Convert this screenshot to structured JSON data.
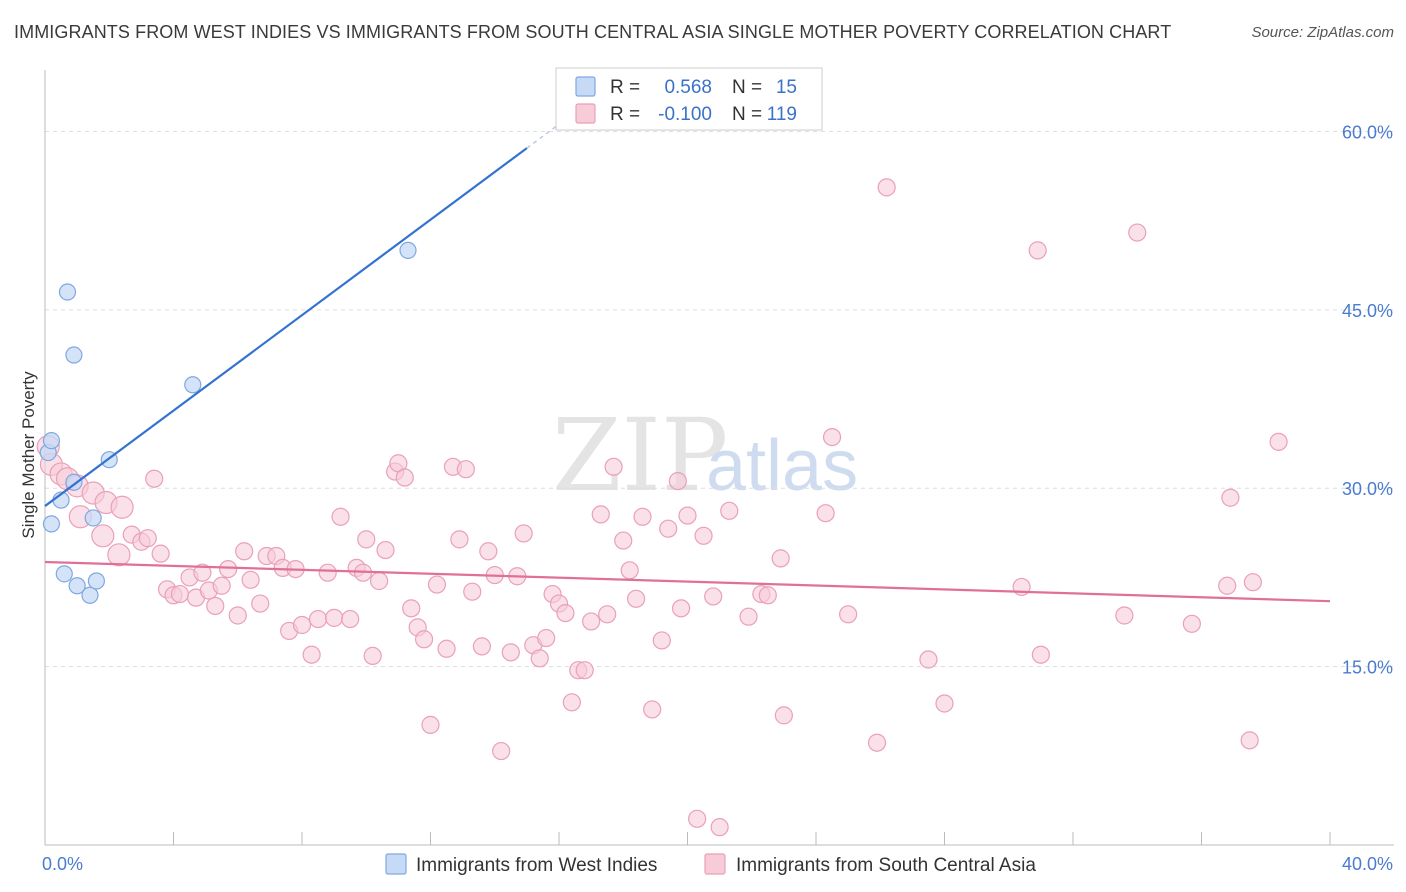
{
  "title": "IMMIGRANTS FROM WEST INDIES VS IMMIGRANTS FROM SOUTH CENTRAL ASIA SINGLE MOTHER POVERTY CORRELATION CHART",
  "source": "Source: ZipAtlas.com",
  "watermark": {
    "zip": "ZIP",
    "atlas": "atlas"
  },
  "colors": {
    "blue_fill": "#c7daf5",
    "blue_stroke": "#7fa8e0",
    "blue_line": "#3373d0",
    "pink_fill": "#f7cbd8",
    "pink_stroke": "#eaa0b8",
    "pink_line": "#e0709a",
    "tick_text": "#4a7bd0",
    "grid": "#dddddd"
  },
  "stats": {
    "r_label": "R =",
    "n_label": "N =",
    "blue": {
      "r": "0.568",
      "n": "15"
    },
    "pink": {
      "r": "-0.100",
      "n": "119"
    }
  },
  "chart_data": {
    "type": "scatter",
    "xlabel": "",
    "ylabel": "Single Mother Poverty",
    "xlim": [
      0,
      40
    ],
    "ylim": [
      0,
      65
    ],
    "x_tick_labels": [
      {
        "value": 0,
        "label": "0.0%"
      },
      {
        "value": 40,
        "label": "40.0%"
      }
    ],
    "y_tick_labels": [
      {
        "value": 15,
        "label": "15.0%"
      },
      {
        "value": 30,
        "label": "30.0%"
      },
      {
        "value": 45,
        "label": "45.0%"
      },
      {
        "value": 60,
        "label": "60.0%"
      }
    ],
    "grid": true,
    "legend_position": "bottom",
    "series": [
      {
        "name": "Immigrants from West Indies",
        "color": "#7fa8e0",
        "points": [
          [
            0.1,
            33.0
          ],
          [
            0.2,
            34.0
          ],
          [
            0.2,
            27.0
          ],
          [
            0.5,
            29.0
          ],
          [
            0.6,
            22.8
          ],
          [
            0.7,
            46.5
          ],
          [
            0.9,
            41.2
          ],
          [
            0.9,
            30.5
          ],
          [
            1.0,
            21.8
          ],
          [
            1.4,
            21.0
          ],
          [
            1.5,
            27.5
          ],
          [
            1.6,
            22.2
          ],
          [
            2.0,
            32.4
          ],
          [
            4.6,
            38.7
          ],
          [
            11.3,
            50.0
          ]
        ],
        "trend": {
          "x0": 0.0,
          "y0": 28.5,
          "x1": 15.0,
          "y1": 58.6,
          "solid_until_x": 15.0
        }
      },
      {
        "name": "Immigrants from South Central Asia",
        "color": "#eaa0b8",
        "points": [
          [
            0.1,
            33.5
          ],
          [
            0.2,
            32.0
          ],
          [
            0.5,
            31.2
          ],
          [
            0.7,
            30.8
          ],
          [
            1.0,
            30.2
          ],
          [
            1.1,
            27.6
          ],
          [
            1.5,
            29.6
          ],
          [
            1.8,
            26.0
          ],
          [
            1.9,
            28.8
          ],
          [
            2.3,
            24.4
          ],
          [
            2.4,
            28.4
          ],
          [
            2.7,
            26.1
          ],
          [
            3.0,
            25.5
          ],
          [
            3.2,
            25.8
          ],
          [
            3.4,
            30.8
          ],
          [
            3.6,
            24.5
          ],
          [
            3.8,
            21.5
          ],
          [
            4.0,
            21.0
          ],
          [
            4.2,
            21.1
          ],
          [
            4.5,
            22.5
          ],
          [
            4.7,
            20.8
          ],
          [
            4.9,
            22.9
          ],
          [
            5.1,
            21.4
          ],
          [
            5.3,
            20.1
          ],
          [
            5.5,
            21.8
          ],
          [
            5.7,
            23.2
          ],
          [
            6.0,
            19.3
          ],
          [
            6.2,
            24.7
          ],
          [
            6.4,
            22.3
          ],
          [
            6.7,
            20.3
          ],
          [
            6.9,
            24.3
          ],
          [
            7.2,
            24.3
          ],
          [
            7.4,
            23.3
          ],
          [
            7.6,
            18.0
          ],
          [
            7.8,
            23.2
          ],
          [
            8.0,
            18.5
          ],
          [
            8.3,
            16.0
          ],
          [
            8.5,
            19.0
          ],
          [
            8.8,
            22.9
          ],
          [
            9.0,
            19.1
          ],
          [
            9.2,
            27.6
          ],
          [
            9.5,
            19.0
          ],
          [
            9.7,
            23.3
          ],
          [
            9.9,
            22.9
          ],
          [
            10.0,
            25.7
          ],
          [
            10.2,
            15.9
          ],
          [
            10.4,
            22.2
          ],
          [
            10.6,
            24.8
          ],
          [
            10.9,
            31.4
          ],
          [
            11.0,
            32.1
          ],
          [
            11.2,
            30.9
          ],
          [
            11.4,
            19.9
          ],
          [
            11.6,
            18.3
          ],
          [
            11.8,
            17.3
          ],
          [
            12.0,
            10.1
          ],
          [
            12.2,
            21.9
          ],
          [
            12.5,
            16.5
          ],
          [
            12.7,
            31.8
          ],
          [
            12.9,
            25.7
          ],
          [
            13.1,
            31.6
          ],
          [
            13.3,
            21.3
          ],
          [
            13.6,
            16.7
          ],
          [
            13.8,
            24.7
          ],
          [
            14.0,
            22.7
          ],
          [
            14.2,
            7.9
          ],
          [
            14.5,
            16.2
          ],
          [
            14.7,
            22.6
          ],
          [
            14.9,
            26.2
          ],
          [
            15.2,
            16.8
          ],
          [
            15.4,
            15.7
          ],
          [
            15.6,
            17.4
          ],
          [
            15.8,
            21.1
          ],
          [
            16.0,
            20.3
          ],
          [
            16.2,
            19.5
          ],
          [
            16.4,
            12.0
          ],
          [
            16.6,
            14.7
          ],
          [
            16.8,
            14.7
          ],
          [
            17.0,
            18.8
          ],
          [
            17.3,
            27.8
          ],
          [
            17.5,
            19.4
          ],
          [
            17.7,
            31.8
          ],
          [
            18.0,
            25.6
          ],
          [
            18.2,
            23.1
          ],
          [
            18.4,
            20.7
          ],
          [
            18.6,
            27.6
          ],
          [
            18.9,
            11.4
          ],
          [
            19.2,
            17.2
          ],
          [
            19.4,
            26.6
          ],
          [
            19.7,
            30.6
          ],
          [
            19.8,
            19.9
          ],
          [
            20.0,
            27.7
          ],
          [
            20.3,
            2.2
          ],
          [
            20.5,
            26.0
          ],
          [
            20.8,
            20.9
          ],
          [
            21.0,
            1.5
          ],
          [
            21.3,
            28.1
          ],
          [
            21.9,
            19.2
          ],
          [
            22.3,
            21.1
          ],
          [
            22.5,
            21.0
          ],
          [
            22.9,
            24.1
          ],
          [
            23.0,
            10.9
          ],
          [
            24.3,
            27.9
          ],
          [
            24.5,
            34.3
          ],
          [
            25.0,
            19.4
          ],
          [
            25.9,
            8.6
          ],
          [
            26.2,
            55.3
          ],
          [
            27.5,
            15.6
          ],
          [
            28.0,
            11.9
          ],
          [
            30.4,
            21.7
          ],
          [
            30.9,
            50.0
          ],
          [
            31.0,
            16.0
          ],
          [
            33.6,
            19.3
          ],
          [
            34.0,
            51.5
          ],
          [
            35.7,
            18.6
          ],
          [
            36.8,
            21.8
          ],
          [
            36.9,
            29.2
          ],
          [
            37.5,
            8.8
          ],
          [
            37.6,
            22.1
          ],
          [
            38.4,
            33.9
          ]
        ],
        "trend": {
          "x0": 0.0,
          "y0": 23.8,
          "x1": 40.0,
          "y1": 20.5
        }
      }
    ]
  },
  "legend": {
    "items": [
      {
        "label": "Immigrants from West Indies"
      },
      {
        "label": "Immigrants from South Central Asia"
      }
    ]
  }
}
